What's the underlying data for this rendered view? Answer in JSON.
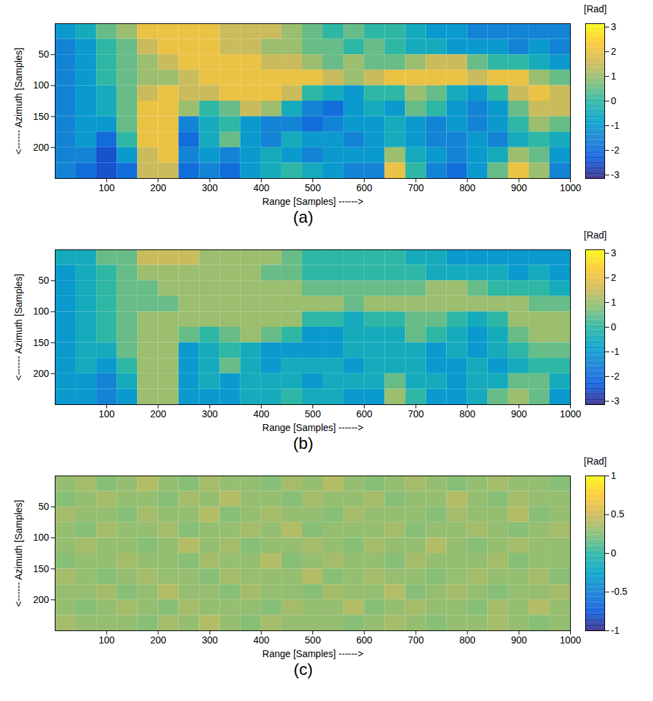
{
  "chart_data": [
    {
      "type": "heatmap",
      "caption": "(a)",
      "xlabel": "Range [Samples] ------>",
      "ylabel": "<------ Azimuth [Samples]",
      "xlim": [
        0,
        1000
      ],
      "xticks": [
        100,
        200,
        300,
        400,
        500,
        600,
        700,
        800,
        900,
        1000
      ],
      "ylim": [
        250,
        0
      ],
      "yticks": [
        50,
        100,
        150,
        200
      ],
      "x_edges": [
        0,
        40,
        80,
        120,
        160,
        200,
        240,
        280,
        320,
        360,
        400,
        440,
        480,
        520,
        560,
        600,
        640,
        680,
        720,
        760,
        800,
        840,
        880,
        920,
        960,
        1000
      ],
      "y_edges": [
        0,
        25,
        50,
        75,
        100,
        125,
        150,
        175,
        200,
        225,
        250
      ],
      "cells": [
        [
          -1,
          -0.5,
          0.5,
          1,
          2,
          2,
          2,
          2,
          1.5,
          1.5,
          1.5,
          1,
          0.5,
          0,
          0.5,
          0,
          0,
          -0.5,
          -1,
          -1,
          -1.5,
          -1.5,
          -1.5,
          -1.5,
          -1.5
        ],
        [
          -1.5,
          -1,
          0,
          0.5,
          1.5,
          2,
          2,
          2,
          1.5,
          1.5,
          1,
          1,
          0.5,
          0.5,
          0,
          0.5,
          0,
          -0.5,
          -0.5,
          -1,
          -1,
          -1,
          -1.5,
          -1,
          -1.5
        ],
        [
          -1.5,
          -1,
          0,
          0.5,
          1,
          1.5,
          2,
          2,
          2,
          2,
          1.5,
          1.5,
          1,
          0.5,
          1,
          0.5,
          0.5,
          1,
          1.5,
          1.5,
          0.5,
          0,
          0,
          -0.5,
          -1
        ],
        [
          -1.5,
          -1,
          0,
          0.5,
          1,
          1,
          1.5,
          2,
          2,
          2,
          2,
          2,
          2,
          1.5,
          1,
          1.5,
          2,
          2,
          2,
          2,
          1.5,
          2,
          2,
          1,
          0.5
        ],
        [
          -1.5,
          -1,
          -0.5,
          0.5,
          1.5,
          2,
          1.5,
          1.5,
          2,
          2,
          2,
          1.5,
          0,
          -0.5,
          -1,
          0,
          0,
          1,
          0.5,
          -0.5,
          -1,
          0,
          1.5,
          2,
          1.5
        ],
        [
          -1.5,
          -1,
          -0.5,
          0.5,
          2,
          2,
          1,
          0,
          0.5,
          1.5,
          1,
          -0.5,
          -1.5,
          -2,
          -1,
          -0.5,
          -1,
          0.5,
          0,
          -1,
          -1.5,
          -1,
          0.5,
          1.5,
          1.5
        ],
        [
          -1.5,
          -1,
          -1,
          0.5,
          2,
          2,
          -1.5,
          -0.5,
          0,
          -1,
          -1.5,
          -1.5,
          -2,
          -1.5,
          -1,
          -1,
          -0.5,
          -1,
          -1.5,
          -1,
          -1.5,
          -1,
          0,
          1,
          0.5
        ],
        [
          -1.5,
          -1,
          -2,
          0,
          2,
          2,
          -2,
          -0.5,
          0.5,
          -1,
          -1.5,
          -0.5,
          -1,
          -1,
          -1.5,
          -1,
          -0.5,
          -1,
          -1.5,
          -1.5,
          -1,
          -1.5,
          -0.5,
          0,
          -0.5
        ],
        [
          -1.5,
          -1.5,
          -2.5,
          -1,
          1.5,
          2,
          -1.5,
          -1,
          -1.5,
          -1,
          -0.5,
          -1,
          -1.5,
          -1,
          -1,
          -1,
          1,
          -0.5,
          -1,
          -1.5,
          -1,
          -0.5,
          1,
          0.5,
          -1
        ],
        [
          -1.5,
          -2,
          -2.5,
          -2,
          1.5,
          1.5,
          -2,
          -1.5,
          -2,
          -1,
          -0.5,
          0,
          -0.5,
          -1,
          -1.5,
          -1.5,
          2,
          0,
          -1.5,
          -2,
          -1,
          0.5,
          2,
          1,
          -1.5
        ]
      ],
      "colorbar": {
        "label": "[Rad]",
        "lim": [
          -3.1416,
          3.1416
        ],
        "ticks": [
          -3,
          -2,
          -1,
          0,
          1,
          2,
          3
        ]
      }
    },
    {
      "type": "heatmap",
      "caption": "(b)",
      "xlabel": "Range [Samples] ------>",
      "ylabel": "<------ Azimuth [Samples]",
      "xlim": [
        0,
        1000
      ],
      "xticks": [
        100,
        200,
        300,
        400,
        500,
        600,
        700,
        800,
        900,
        1000
      ],
      "ylim": [
        250,
        0
      ],
      "yticks": [
        50,
        100,
        150,
        200
      ],
      "x_edges": [
        0,
        40,
        80,
        120,
        160,
        200,
        240,
        280,
        320,
        360,
        400,
        440,
        480,
        520,
        560,
        600,
        640,
        680,
        720,
        760,
        800,
        840,
        880,
        920,
        960,
        1000
      ],
      "y_edges": [
        0,
        25,
        50,
        75,
        100,
        125,
        150,
        175,
        200,
        225,
        250
      ],
      "cells": [
        [
          -0.5,
          -0.5,
          0.5,
          0.5,
          1.5,
          1.5,
          1.5,
          1,
          1,
          1,
          1,
          0.5,
          0,
          0,
          0,
          0,
          0,
          -0.5,
          -0.5,
          -1,
          -1,
          -1,
          -1,
          -1,
          -1
        ],
        [
          -1,
          -0.5,
          0,
          0.5,
          1,
          1,
          1,
          1,
          1,
          1,
          0.5,
          0.5,
          0,
          0,
          0,
          0,
          0,
          0,
          -0.5,
          -0.5,
          -0.5,
          -0.5,
          -1,
          -0.5,
          -1
        ],
        [
          -1,
          -0.5,
          0,
          0.5,
          0.5,
          1,
          1,
          1,
          1,
          1,
          1,
          1,
          0.5,
          0.5,
          0.5,
          0.5,
          0.5,
          0.5,
          1,
          1,
          0.5,
          0,
          0,
          0,
          -0.5
        ],
        [
          -1,
          -0.5,
          0,
          0.5,
          0.5,
          0.5,
          1,
          1,
          1,
          1,
          1,
          1,
          1,
          1,
          0.5,
          1,
          1,
          1,
          1,
          1,
          1,
          1,
          1,
          0.5,
          0.5
        ],
        [
          -1,
          -0.5,
          0,
          0.5,
          1,
          1,
          1,
          1,
          1,
          1,
          1,
          1,
          0,
          0,
          -0.5,
          0,
          0,
          0.5,
          0.5,
          0,
          -0.5,
          0,
          1,
          1,
          1
        ],
        [
          -1,
          -0.5,
          0,
          0.5,
          1,
          1,
          0.5,
          0,
          0.5,
          1,
          0.5,
          0,
          -1,
          -1,
          -0.5,
          -0.5,
          -0.5,
          0.5,
          0,
          -0.5,
          -1,
          -0.5,
          0.5,
          1,
          1
        ],
        [
          -1,
          -0.5,
          -0.5,
          0.5,
          1,
          1,
          -1,
          -0.5,
          0,
          -0.5,
          -1,
          -1,
          -1,
          -1,
          -0.5,
          -0.5,
          -0.5,
          -0.5,
          -1,
          -0.5,
          -1,
          -0.5,
          0,
          0.5,
          0.5
        ],
        [
          -1,
          -0.5,
          -1,
          0,
          1,
          1,
          -1,
          -0.5,
          0.5,
          -0.5,
          -1,
          -0.5,
          -0.5,
          -0.5,
          -1,
          -0.5,
          -0.5,
          -0.5,
          -1,
          -1,
          -0.5,
          -1,
          -0.5,
          0,
          0
        ],
        [
          -1,
          -1,
          -1.5,
          -0.5,
          1,
          1,
          -1,
          -0.5,
          -1,
          -0.5,
          -0.5,
          -0.5,
          -1,
          -0.5,
          -0.5,
          -0.5,
          0.5,
          -0.5,
          -0.5,
          -1,
          -0.5,
          -0.5,
          0.5,
          0.5,
          -0.5
        ],
        [
          -1,
          -1,
          -1.5,
          -1,
          1,
          1,
          -1,
          -1,
          -1,
          -0.5,
          -0.5,
          0,
          -0.5,
          -0.5,
          -1,
          -1,
          1,
          0,
          -1,
          -1,
          -0.5,
          0.5,
          1,
          0.5,
          -1
        ]
      ],
      "colorbar": {
        "label": "[Rad]",
        "lim": [
          -3.1416,
          3.1416
        ],
        "ticks": [
          -3,
          -2,
          -1,
          0,
          1,
          2,
          3
        ]
      }
    },
    {
      "type": "heatmap",
      "caption": "(c)",
      "xlabel": "Range [Samples] ------>",
      "ylabel": "<------ Azimuth [Samples]",
      "xlim": [
        0,
        1000
      ],
      "xticks": [
        100,
        200,
        300,
        400,
        500,
        600,
        700,
        800,
        900,
        1000
      ],
      "ylim": [
        250,
        0
      ],
      "yticks": [
        50,
        100,
        150,
        200
      ],
      "x_edges": [
        0,
        40,
        80,
        120,
        160,
        200,
        240,
        280,
        320,
        360,
        400,
        440,
        480,
        520,
        560,
        600,
        640,
        680,
        720,
        760,
        800,
        840,
        880,
        920,
        960,
        1000
      ],
      "y_edges": [
        0,
        25,
        50,
        75,
        100,
        125,
        150,
        175,
        200,
        225,
        250
      ],
      "cells": [
        [
          0.3,
          0.35,
          0.25,
          0.3,
          0.4,
          0.3,
          0.25,
          0.35,
          0.3,
          0.3,
          0.25,
          0.35,
          0.3,
          0.4,
          0.3,
          0.25,
          0.3,
          0.35,
          0.3,
          0.25,
          0.3,
          0.35,
          0.3,
          0.3,
          0.25
        ],
        [
          0.25,
          0.3,
          0.35,
          0.3,
          0.3,
          0.25,
          0.35,
          0.3,
          0.4,
          0.3,
          0.3,
          0.25,
          0.35,
          0.3,
          0.3,
          0.35,
          0.25,
          0.3,
          0.3,
          0.4,
          0.3,
          0.25,
          0.35,
          0.3,
          0.3
        ],
        [
          0.35,
          0.3,
          0.3,
          0.25,
          0.35,
          0.3,
          0.3,
          0.4,
          0.25,
          0.3,
          0.35,
          0.3,
          0.3,
          0.25,
          0.35,
          0.3,
          0.3,
          0.3,
          0.25,
          0.35,
          0.3,
          0.3,
          0.4,
          0.25,
          0.3
        ],
        [
          0.3,
          0.25,
          0.35,
          0.3,
          0.3,
          0.35,
          0.25,
          0.3,
          0.3,
          0.35,
          0.3,
          0.4,
          0.25,
          0.3,
          0.3,
          0.3,
          0.35,
          0.25,
          0.3,
          0.3,
          0.35,
          0.3,
          0.25,
          0.3,
          0.35
        ],
        [
          0.3,
          0.35,
          0.3,
          0.3,
          0.25,
          0.3,
          0.4,
          0.3,
          0.35,
          0.25,
          0.3,
          0.3,
          0.35,
          0.3,
          0.25,
          0.35,
          0.3,
          0.3,
          0.4,
          0.3,
          0.25,
          0.3,
          0.35,
          0.3,
          0.3
        ],
        [
          0.25,
          0.3,
          0.3,
          0.35,
          0.3,
          0.3,
          0.25,
          0.35,
          0.3,
          0.3,
          0.4,
          0.25,
          0.3,
          0.35,
          0.3,
          0.3,
          0.25,
          0.35,
          0.3,
          0.3,
          0.3,
          0.35,
          0.25,
          0.3,
          0.3
        ],
        [
          0.35,
          0.3,
          0.25,
          0.3,
          0.35,
          0.3,
          0.3,
          0.25,
          0.35,
          0.3,
          0.3,
          0.3,
          0.4,
          0.25,
          0.3,
          0.35,
          0.3,
          0.3,
          0.25,
          0.3,
          0.35,
          0.3,
          0.3,
          0.35,
          0.25
        ],
        [
          0.3,
          0.3,
          0.35,
          0.25,
          0.3,
          0.4,
          0.3,
          0.3,
          0.25,
          0.35,
          0.3,
          0.3,
          0.25,
          0.35,
          0.3,
          0.3,
          0.4,
          0.25,
          0.3,
          0.35,
          0.3,
          0.25,
          0.3,
          0.3,
          0.35
        ],
        [
          0.3,
          0.25,
          0.3,
          0.35,
          0.3,
          0.25,
          0.35,
          0.3,
          0.3,
          0.3,
          0.25,
          0.35,
          0.3,
          0.3,
          0.4,
          0.25,
          0.3,
          0.35,
          0.3,
          0.3,
          0.25,
          0.35,
          0.3,
          0.4,
          0.3
        ],
        [
          0.35,
          0.3,
          0.3,
          0.3,
          0.25,
          0.35,
          0.3,
          0.4,
          0.3,
          0.25,
          0.35,
          0.3,
          0.3,
          0.3,
          0.25,
          0.3,
          0.35,
          0.3,
          0.25,
          0.3,
          0.3,
          0.35,
          0.3,
          0.25,
          0.3
        ]
      ],
      "colorbar": {
        "label": "[Rad]",
        "lim": [
          -1,
          1
        ],
        "ticks": [
          -1,
          -0.5,
          0,
          0.5,
          1
        ]
      }
    }
  ]
}
